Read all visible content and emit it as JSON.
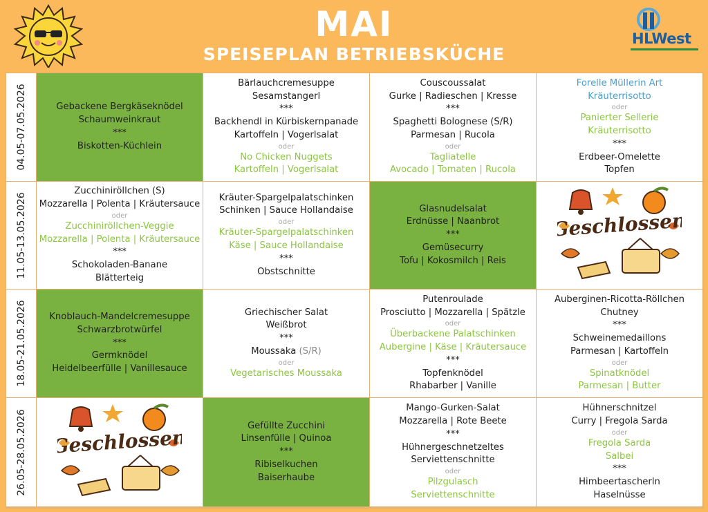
{
  "header": {
    "title": "MAI",
    "subtitle": "SPEISEPLAN BETRIEBSKÜCHE",
    "logo": "HLWest"
  },
  "closed_label": "Geschlossen",
  "weeks": [
    {
      "dates": "04.05-07.05.2026",
      "days": [
        {
          "bg": "green",
          "lines": [
            {
              "text": "Gebackene Bergkäseknödel"
            },
            {
              "text": "Schaumweinkraut"
            },
            {
              "text": "***"
            },
            {
              "text": "Biskotten-Küchlein"
            }
          ]
        },
        {
          "lines": [
            {
              "text": "Bärlauchcremesuppe"
            },
            {
              "text": "Sesamstangerl"
            },
            {
              "text": "***"
            },
            {
              "text": "Backhendl in Kürbiskernpanade"
            },
            {
              "text": "Kartoffeln | Vogerlsalat"
            },
            {
              "text": "oder",
              "kind": "oder"
            },
            {
              "text": "No Chicken Nuggets",
              "kind": "green"
            },
            {
              "text": "Kartoffeln | Vogerlsalat",
              "kind": "green"
            }
          ]
        },
        {
          "lines": [
            {
              "text": "Couscoussalat"
            },
            {
              "text": "Gurke | Radieschen | Kresse"
            },
            {
              "text": "***"
            },
            {
              "text": "Spaghetti Bolognese (S/R)"
            },
            {
              "text": "Parmesan | Rucola"
            },
            {
              "text": "oder",
              "kind": "oder"
            },
            {
              "text": "Tagliatelle",
              "kind": "green"
            },
            {
              "text": "Avocado | Tomaten | Rucola",
              "kind": "green"
            }
          ]
        },
        {
          "lines": [
            {
              "text": "Forelle Müllerin Art",
              "kind": "blue"
            },
            {
              "text": "Kräuterrisotto",
              "kind": "blue"
            },
            {
              "text": "oder",
              "kind": "oder"
            },
            {
              "text": "Panierter Sellerie",
              "kind": "green"
            },
            {
              "text": "Kräuterrisotto",
              "kind": "green"
            },
            {
              "text": "***"
            },
            {
              "text": "Erdbeer-Omelette"
            },
            {
              "text": "Topfen"
            }
          ]
        }
      ]
    },
    {
      "dates": "11.05-13.05.2026",
      "days": [
        {
          "lines": [
            {
              "text": "Zucchiniröllchen (S)"
            },
            {
              "text": "Mozzarella | Polenta | Kräutersauce"
            },
            {
              "text": "oder",
              "kind": "oder"
            },
            {
              "text": "Zucchiniröllchen-Veggie",
              "kind": "green"
            },
            {
              "text": "Mozzarella | Polenta | Kräutersauce",
              "kind": "green"
            },
            {
              "text": "***"
            },
            {
              "text": "Schokoladen-Banane"
            },
            {
              "text": "Blätterteig"
            }
          ]
        },
        {
          "lines": [
            {
              "text": "Kräuter-Spargelpalatschinken"
            },
            {
              "text": "Schinken | Sauce Hollandaise"
            },
            {
              "text": "oder",
              "kind": "oder"
            },
            {
              "text": "Kräuter-Spargelpalatschinken",
              "kind": "green"
            },
            {
              "text": "Käse | Sauce Hollandaise",
              "kind": "green"
            },
            {
              "text": "***"
            },
            {
              "text": "Obstschnitte"
            }
          ]
        },
        {
          "bg": "green",
          "lines": [
            {
              "text": "Glasnudelsalat"
            },
            {
              "text": "Erdnüsse | Naanbrot"
            },
            {
              "text": "***"
            },
            {
              "text": "Gemüsecurry"
            },
            {
              "text": "Tofu | Kokosmilch | Reis"
            }
          ]
        },
        {
          "closed": true
        }
      ]
    },
    {
      "dates": "18.05-21.05.2026",
      "days": [
        {
          "bg": "green",
          "lines": [
            {
              "text": "Knoblauch-Mandelcremesuppe"
            },
            {
              "text": "Schwarzbrotwürfel"
            },
            {
              "text": "***"
            },
            {
              "text": "Germknödel"
            },
            {
              "text": "Heidelbeerfülle | Vanillesauce"
            }
          ]
        },
        {
          "lines": [
            {
              "text": "Griechischer Salat"
            },
            {
              "text": "Weißbrot"
            },
            {
              "text": "***"
            },
            {
              "text": "Moussaka",
              "note": "(S/R)"
            },
            {
              "text": "oder",
              "kind": "oder"
            },
            {
              "text": "Vegetarisches  Moussaka",
              "kind": "green"
            }
          ]
        },
        {
          "lines": [
            {
              "text": "Putenroulade"
            },
            {
              "text": "Prosciutto | Mozzarella | Spätzle"
            },
            {
              "text": "oder",
              "kind": "oder"
            },
            {
              "text": "Überbackene Palatschinken",
              "kind": "green"
            },
            {
              "text": "Aubergine | Käse | Kräutersauce",
              "kind": "green"
            },
            {
              "text": "***"
            },
            {
              "text": "Topfenknödel"
            },
            {
              "text": "Rhabarber | Vanille"
            }
          ]
        },
        {
          "lines": [
            {
              "text": "Auberginen-Ricotta-Röllchen"
            },
            {
              "text": "Chutney"
            },
            {
              "text": "***"
            },
            {
              "text": "Schweinemedaillons"
            },
            {
              "text": "Parmesan | Kartoffeln"
            },
            {
              "text": "oder",
              "kind": "oder"
            },
            {
              "text": "Spinatknödel",
              "kind": "green"
            },
            {
              "text": "Parmesan | Butter",
              "kind": "green"
            }
          ]
        }
      ]
    },
    {
      "dates": "26.05-28.05.2026",
      "days": [
        {
          "closed": true
        },
        {
          "bg": "green",
          "lines": [
            {
              "text": "Gefüllte Zucchini"
            },
            {
              "text": "Linsenfülle | Quinoa"
            },
            {
              "text": "***"
            },
            {
              "text": "Ribiselkuchen"
            },
            {
              "text": "Baiserhaube"
            }
          ]
        },
        {
          "lines": [
            {
              "text": "Mango-Gurken-Salat"
            },
            {
              "text": "Mozzarella | Rote Beete"
            },
            {
              "text": "***"
            },
            {
              "text": "Hühnergeschnetzeltes"
            },
            {
              "text": "Serviettenschnitte"
            },
            {
              "text": "oder",
              "kind": "oder"
            },
            {
              "text": "Pilzgulasch",
              "kind": "green"
            },
            {
              "text": "Serviettenschnitte",
              "kind": "green"
            }
          ]
        },
        {
          "lines": [
            {
              "text": "Hühnerschnitzel"
            },
            {
              "text": "Curry  | Fregola Sarda"
            },
            {
              "text": "oder",
              "kind": "oder"
            },
            {
              "text": "Fregola Sarda",
              "kind": "green"
            },
            {
              "text": "Salbei",
              "kind": "green"
            },
            {
              "text": "***"
            },
            {
              "text": "Himbeertascherln"
            },
            {
              "text": "Haselnüsse"
            }
          ]
        }
      ]
    }
  ]
}
